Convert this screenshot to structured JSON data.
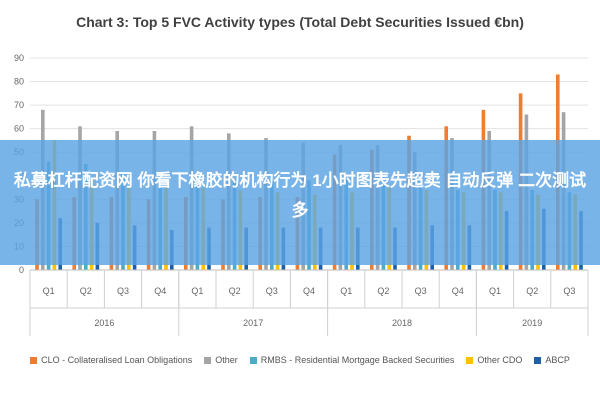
{
  "title": "Chart 3: Top 5 FVC Activity types (Total Debt Securities Issued €bn)",
  "overlay_text": "私募杠杆配资网 你看下橡胶的机构行为 1小时图表先超卖 自动反弹 二次测试 多",
  "chart_data": {
    "type": "bar",
    "title": "Chart 3: Top 5 FVC Activity types (Total Debt Securities Issued €bn)",
    "categories": [
      "Q1",
      "Q2",
      "Q3",
      "Q4",
      "Q1",
      "Q2",
      "Q3",
      "Q4",
      "Q1",
      "Q2",
      "Q3",
      "Q4",
      "Q1",
      "Q2",
      "Q3"
    ],
    "groups": [
      {
        "label": "2016",
        "count": 4
      },
      {
        "label": "2017",
        "count": 4
      },
      {
        "label": "2018",
        "count": 4
      },
      {
        "label": "2019",
        "count": 3
      }
    ],
    "ylim": [
      0,
      90
    ],
    "yticks": [
      0,
      10,
      20,
      30,
      40,
      50,
      60,
      70,
      80,
      90
    ],
    "series": [
      {
        "name": "CLO - Collateralised Loan Obligations",
        "color": "#ED7D31",
        "values": [
          30,
          31,
          31,
          30,
          31,
          30,
          31,
          31,
          49,
          51,
          57,
          61,
          68,
          75,
          83
        ]
      },
      {
        "name": "Other",
        "color": "#A5A5A5",
        "values": [
          68,
          61,
          59,
          59,
          61,
          58,
          56,
          54,
          53,
          53,
          50,
          56,
          59,
          66,
          67
        ]
      },
      {
        "name": "RMBS - Residential Mortgage Backed Securities",
        "color": "#4BACC6",
        "values": [
          46,
          45,
          41,
          40,
          40,
          38,
          38,
          38,
          39,
          36,
          36,
          34,
          34,
          34,
          33
        ]
      },
      {
        "name": "Other CDO",
        "color": "#FFC000",
        "values": [
          55,
          38,
          35,
          36,
          35,
          34,
          33,
          32,
          33,
          35,
          34,
          33,
          33,
          32,
          32
        ]
      },
      {
        "name": "ABCP",
        "color": "#1F5FA8",
        "values": [
          22,
          20,
          19,
          17,
          18,
          18,
          18,
          18,
          18,
          18,
          19,
          19,
          25,
          26,
          25
        ]
      }
    ]
  }
}
